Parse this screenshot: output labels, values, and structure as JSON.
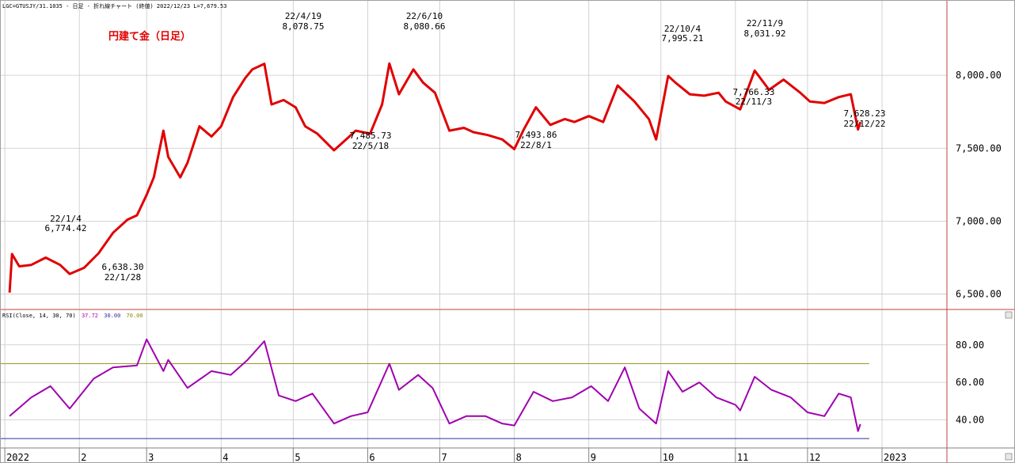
{
  "header": {
    "price_info": "LGC=GTUSJY/31.1035 - 日足 - 折れ線チャート  (終値)  2022/12/23 L=7,679.53",
    "rsi_info": "RSI(Close, 14, 30, 70)",
    "rsi_value": "37.72",
    "rsi_low": "30.00",
    "rsi_high": "70.00"
  },
  "colors": {
    "price_line": "#e00000",
    "rsi_line": "#a000b0",
    "upper_band": "#9a9a20",
    "lower_band": "#3030a0",
    "grid": "#c8c8c8",
    "frame": "#c04040",
    "rsi_low_text": "#b000b0",
    "rsi_high_text": "#8a8a00"
  },
  "chart_data": [
    {
      "type": "line",
      "title": "円建て金（日足）",
      "series": [],
      "x": [
        "2022-01-03",
        "2022-01-04",
        "2022-01-07",
        "2022-01-12",
        "2022-01-18",
        "2022-01-24",
        "2022-01-28",
        "2022-02-03",
        "2022-02-09",
        "2022-02-15",
        "2022-02-21",
        "2022-02-25",
        "2022-03-01",
        "2022-03-04",
        "2022-03-08",
        "2022-03-10",
        "2022-03-15",
        "2022-03-18",
        "2022-03-23",
        "2022-03-28",
        "2022-04-01",
        "2022-04-06",
        "2022-04-11",
        "2022-04-14",
        "2022-04-19",
        "2022-04-22",
        "2022-04-27",
        "2022-05-02",
        "2022-05-06",
        "2022-05-11",
        "2022-05-18",
        "2022-05-23",
        "2022-05-27",
        "2022-06-02",
        "2022-06-07",
        "2022-06-10",
        "2022-06-14",
        "2022-06-20",
        "2022-06-24",
        "2022-06-29",
        "2022-07-05",
        "2022-07-11",
        "2022-07-15",
        "2022-07-21",
        "2022-07-27",
        "2022-08-01",
        "2022-08-05",
        "2022-08-10",
        "2022-08-16",
        "2022-08-22",
        "2022-08-26",
        "2022-09-01",
        "2022-09-07",
        "2022-09-13",
        "2022-09-20",
        "2022-09-26",
        "2022-09-29",
        "2022-10-04",
        "2022-10-07",
        "2022-10-13",
        "2022-10-19",
        "2022-10-25",
        "2022-10-28",
        "2022-11-03",
        "2022-11-09",
        "2022-11-15",
        "2022-11-21",
        "2022-11-28",
        "2022-12-02",
        "2022-12-08",
        "2022-12-14",
        "2022-12-19",
        "2022-12-22",
        "2022-12-23"
      ],
      "y": [
        6510,
        6774.42,
        6690,
        6700,
        6750,
        6700,
        6638.3,
        6680,
        6780,
        6920,
        7010,
        7040,
        7180,
        7300,
        7620,
        7440,
        7300,
        7400,
        7650,
        7580,
        7650,
        7850,
        7980,
        8040,
        8078.75,
        7800,
        7830,
        7780,
        7650,
        7600,
        7485.73,
        7560,
        7620,
        7600,
        7800,
        8080.66,
        7870,
        8040,
        7950,
        7880,
        7620,
        7640,
        7610,
        7590,
        7560,
        7493.86,
        7630,
        7780,
        7660,
        7700,
        7680,
        7720,
        7680,
        7930,
        7820,
        7700,
        7560,
        7995.21,
        7950,
        7870,
        7860,
        7880,
        7820,
        7766.33,
        8031.92,
        7900,
        7970,
        7880,
        7820,
        7810,
        7850,
        7870,
        7628.23,
        7679.53
      ],
      "annotations": [
        {
          "date": "22/1/4",
          "value": "6,774.42"
        },
        {
          "date": "22/1/28",
          "value": "6,638.30"
        },
        {
          "date": "22/4/19",
          "value": "8,078.75"
        },
        {
          "date": "22/5/18",
          "value": "7,485.73"
        },
        {
          "date": "22/6/10",
          "value": "8,080.66"
        },
        {
          "date": "22/8/1",
          "value": "7,493.86"
        },
        {
          "date": "22/10/4",
          "value": "7,995.21"
        },
        {
          "date": "22/11/3",
          "value": "7,766.33"
        },
        {
          "date": "22/11/9",
          "value": "8,031.92"
        },
        {
          "date": "22/12/22",
          "value": "7,628.23"
        }
      ],
      "y_ticks": [
        "6,500.00",
        "7,000.00",
        "7,500.00",
        "8,000.00"
      ],
      "ylim": [
        6400,
        8440
      ],
      "grid": true
    },
    {
      "type": "line",
      "series": [],
      "x": [
        "2022-01-03",
        "2022-01-12",
        "2022-01-20",
        "2022-01-28",
        "2022-02-07",
        "2022-02-15",
        "2022-02-25",
        "2022-03-01",
        "2022-03-08",
        "2022-03-10",
        "2022-03-18",
        "2022-03-28",
        "2022-04-05",
        "2022-04-12",
        "2022-04-19",
        "2022-04-25",
        "2022-05-02",
        "2022-05-09",
        "2022-05-18",
        "2022-05-25",
        "2022-06-01",
        "2022-06-10",
        "2022-06-14",
        "2022-06-22",
        "2022-06-28",
        "2022-07-05",
        "2022-07-12",
        "2022-07-20",
        "2022-07-27",
        "2022-08-01",
        "2022-08-09",
        "2022-08-17",
        "2022-08-25",
        "2022-09-02",
        "2022-09-09",
        "2022-09-16",
        "2022-09-22",
        "2022-09-29",
        "2022-10-04",
        "2022-10-10",
        "2022-10-17",
        "2022-10-24",
        "2022-11-01",
        "2022-11-03",
        "2022-11-09",
        "2022-11-16",
        "2022-11-24",
        "2022-12-01",
        "2022-12-08",
        "2022-12-14",
        "2022-12-19",
        "2022-12-22",
        "2022-12-23"
      ],
      "y": [
        42,
        52,
        58,
        46,
        62,
        68,
        69,
        83,
        66,
        72,
        57,
        66,
        64,
        72,
        82,
        53,
        50,
        54,
        38,
        42,
        44,
        70,
        56,
        64,
        57,
        38,
        42,
        42,
        38,
        37,
        55,
        50,
        52,
        58,
        50,
        68,
        46,
        38,
        66,
        55,
        60,
        52,
        48,
        45,
        63,
        56,
        52,
        44,
        42,
        54,
        52,
        34,
        37.72
      ],
      "bands": [
        30,
        70
      ],
      "y_ticks": [
        "40.00",
        "60.00",
        "80.00"
      ],
      "ylim": [
        25,
        93
      ],
      "grid": true
    }
  ],
  "x_axis": {
    "labels": [
      {
        "date": "2022-01-01",
        "text": "2022"
      },
      {
        "date": "2022-02-01",
        "text": "2"
      },
      {
        "date": "2022-03-01",
        "text": "3"
      },
      {
        "date": "2022-04-01",
        "text": "4"
      },
      {
        "date": "2022-05-01",
        "text": "5"
      },
      {
        "date": "2022-06-01",
        "text": "6"
      },
      {
        "date": "2022-07-01",
        "text": "7"
      },
      {
        "date": "2022-08-01",
        "text": "8"
      },
      {
        "date": "2022-09-01",
        "text": "9"
      },
      {
        "date": "2022-10-01",
        "text": "10"
      },
      {
        "date": "2022-11-01",
        "text": "11"
      },
      {
        "date": "2022-12-01",
        "text": "12"
      },
      {
        "date": "2023-01-01",
        "text": "2023"
      }
    ]
  }
}
